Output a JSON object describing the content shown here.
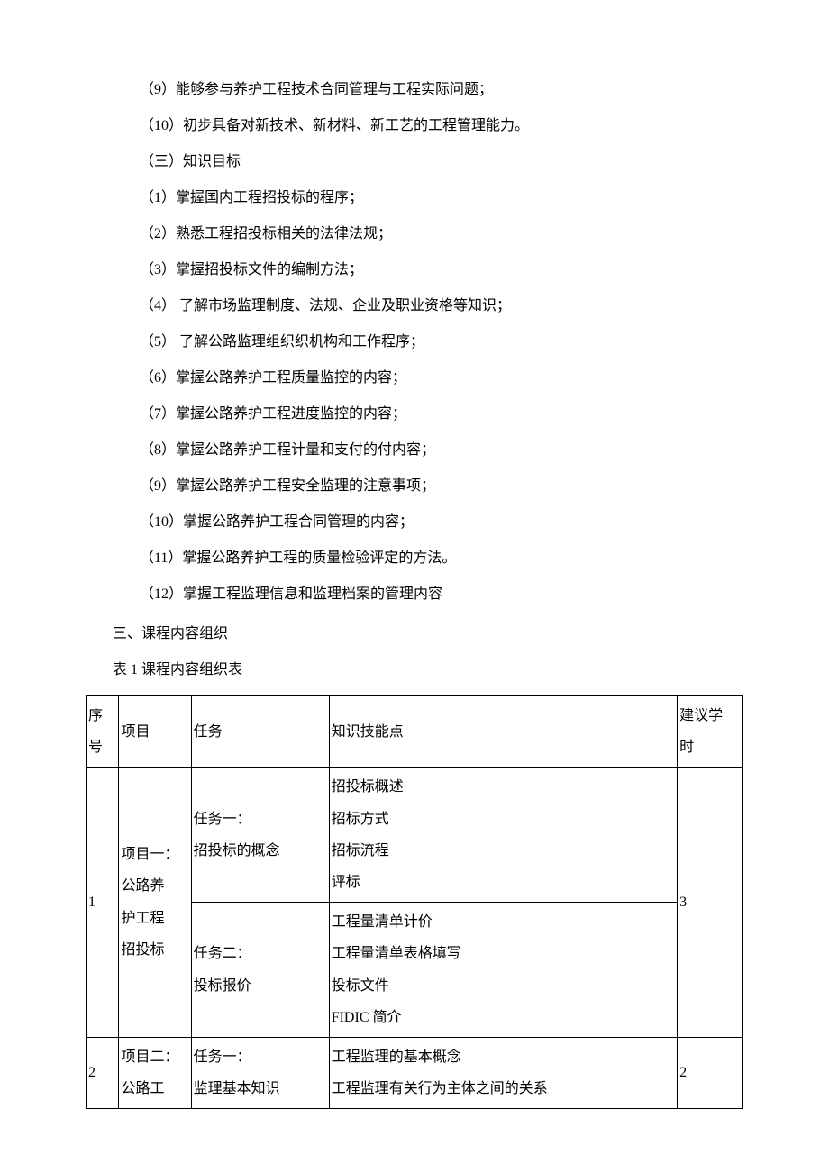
{
  "paragraphs": {
    "p1": "（9）能够参与养护工程技术合同管理与工程实际问题；",
    "p2": "（10）初步具备对新技术、新材料、新工艺的工程管理能力。",
    "p3": "（三）知识目标",
    "p4": "（1）掌握国内工程招投标的程序；",
    "p5": "（2）熟悉工程招投标相关的法律法规；",
    "p6": "（3）掌握招投标文件的编制方法；",
    "p7": "（4）  了解市场监理制度、法规、企业及职业资格等知识；",
    "p8": "（5）  了解公路监理组织织机构和工作程序；",
    "p9": "（6）掌握公路养护工程质量监控的内容；",
    "p10": "（7）掌握公路养护工程进度监控的内容；",
    "p11": "（8）掌握公路养护工程计量和支付的付内容；",
    "p12": "（9）掌握公路养护工程安全监理的注意事项；",
    "p13": "（10）掌握公路养护工程合同管理的内容；",
    "p14": "（11）掌握公路养护工程的质量检验评定的方法。",
    "p15": "（12）掌握工程监理信息和监理档案的管理内容"
  },
  "section_heading": "三、课程内容组织",
  "table_caption": "表 1 课程内容组织表",
  "table": {
    "headers": {
      "seq_l1": "序",
      "seq_l2": "号",
      "project": "项目",
      "task": "任务",
      "knowledge": "知识技能点",
      "hours_l1": "建议学",
      "hours_l2": "时"
    },
    "row1": {
      "seq": "1",
      "project_l1": "项目一：",
      "project_l2": "公路养",
      "project_l3": "护工程",
      "project_l4": "招投标",
      "task1_l1": "任务一：",
      "task1_l2": "招投标的概念",
      "knowledge1_l1": "招投标概述",
      "knowledge1_l2": "招标方式",
      "knowledge1_l3": "招标流程",
      "knowledge1_l4": "评标",
      "task2_l1": "任务二：",
      "task2_l2": "投标报价",
      "knowledge2_l1": "工程量清单计价",
      "knowledge2_l2": "工程量清单表格填写",
      "knowledge2_l3": "投标文件",
      "knowledge2_l4": "FIDIC 简介",
      "hours": "3"
    },
    "row2": {
      "seq": "2",
      "project_l1": "项目二：",
      "project_l2": "公路工",
      "task1_l1": "任务一：",
      "task1_l2": "监理基本知识",
      "knowledge1_l1": "工程监理的基本概念",
      "knowledge1_l2": "工程监理有关行为主体之间的关系",
      "hours": "2"
    }
  }
}
